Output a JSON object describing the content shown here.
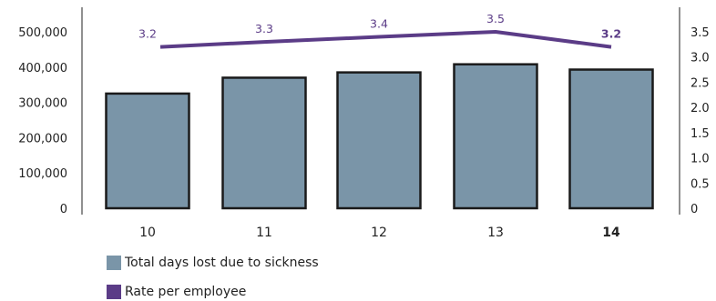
{
  "chart_data": {
    "type": "bar",
    "categories": [
      "10",
      "11",
      "12",
      "13",
      "14"
    ],
    "highlight_category": "14",
    "series": [
      {
        "name": "Total days lost due to sickness",
        "type": "bar",
        "axis": "left",
        "color": "#7a95a8",
        "values": [
          325000,
          370000,
          385000,
          408000,
          393000
        ]
      },
      {
        "name": "Rate per employee",
        "type": "line",
        "axis": "right",
        "color": "#5b3c87",
        "values": [
          3.2,
          3.3,
          3.4,
          3.5,
          3.2
        ],
        "labels": [
          "3.2",
          "3.3",
          "3.4",
          "3.5",
          "3.2"
        ]
      }
    ],
    "y_left": {
      "ylim": [
        0,
        500000
      ],
      "ticks": [
        0,
        100000,
        200000,
        300000,
        400000,
        500000
      ],
      "tick_labels": [
        "0",
        "100,000",
        "200,000",
        "300,000",
        "400,000",
        "500,000"
      ]
    },
    "y_right": {
      "ylim": [
        0,
        3.5
      ],
      "ticks": [
        0,
        0.5,
        1.0,
        1.5,
        2.0,
        2.5,
        3.0,
        3.5
      ],
      "tick_labels": [
        "0",
        "0.5",
        "1.0",
        "1.5",
        "2.0",
        "2.5",
        "3.0",
        "3.5"
      ]
    },
    "legend_position": "bottom-left",
    "grid": false
  }
}
